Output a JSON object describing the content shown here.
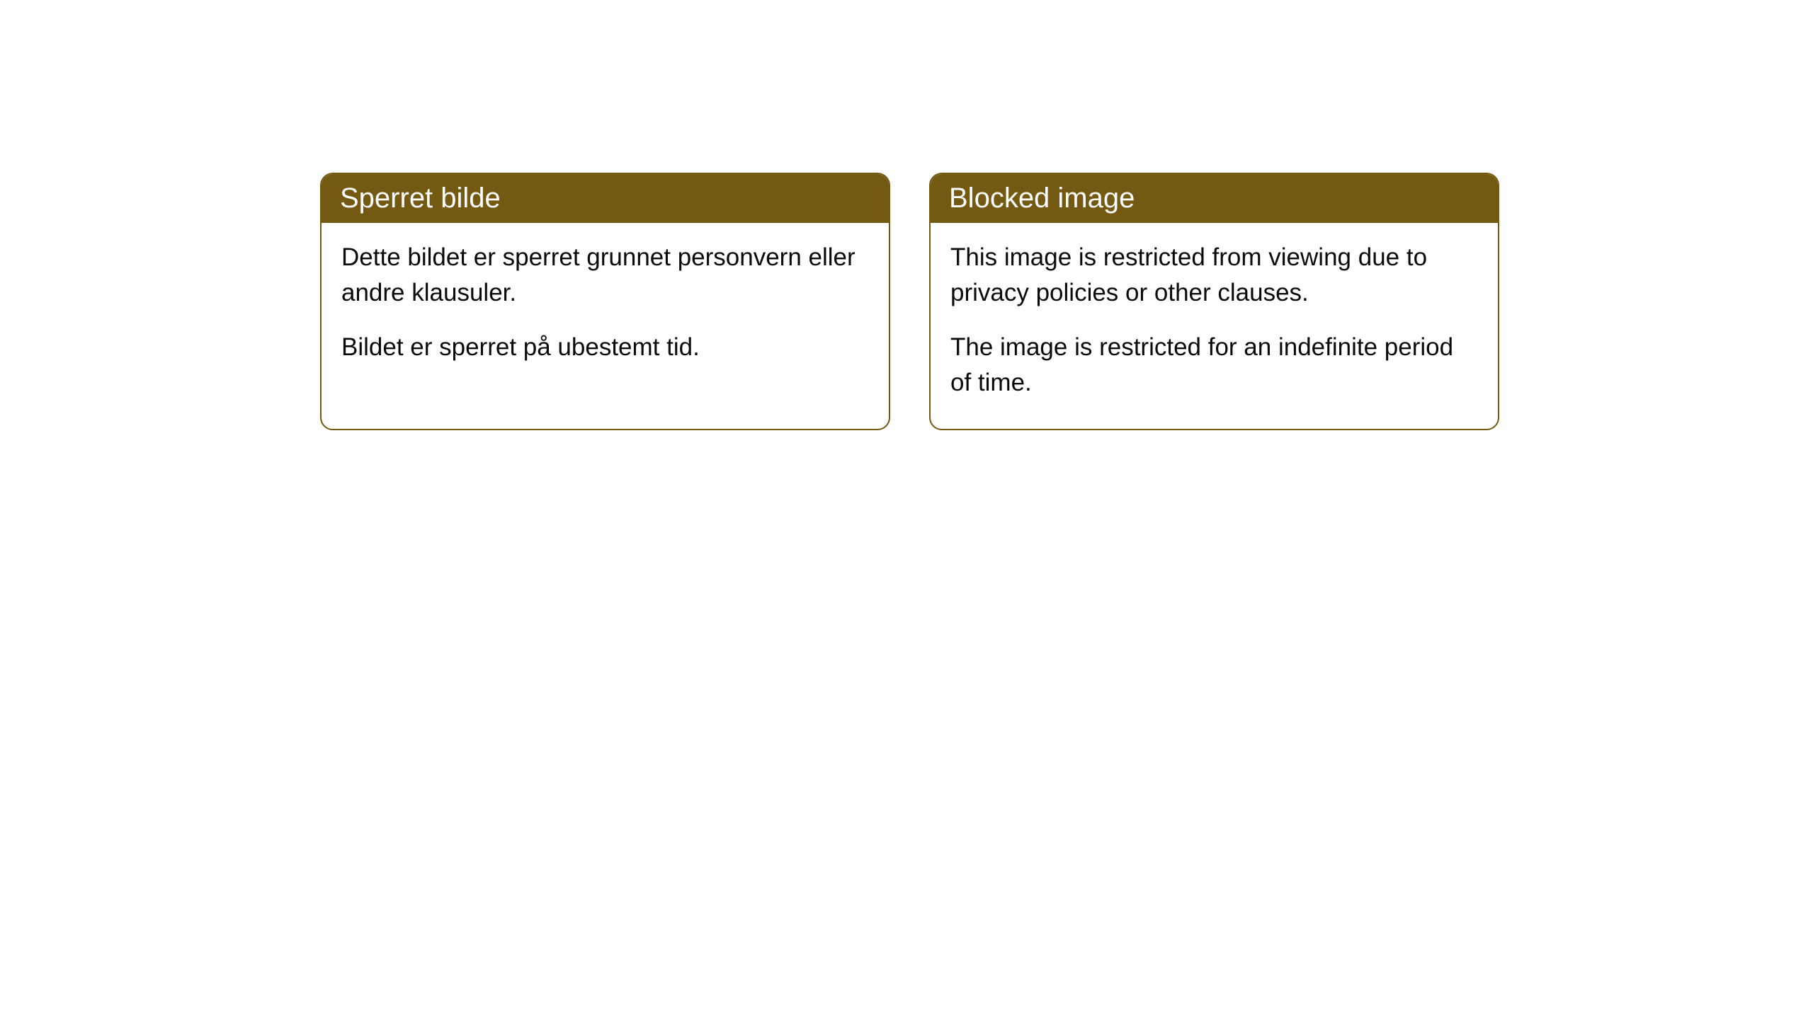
{
  "cards": [
    {
      "header": "Sperret bilde",
      "paragraph1": "Dette bildet er sperret grunnet personvern eller andre klausuler.",
      "paragraph2": "Bildet er sperret på ubestemt tid."
    },
    {
      "header": "Blocked image",
      "paragraph1": "This image is restricted from viewing due to privacy policies or other clauses.",
      "paragraph2": "The image is restricted for an indefinite period of time."
    }
  ],
  "styling": {
    "header_background_color": "#745912",
    "header_text_color": "#ffffff",
    "border_color": "#745912",
    "body_text_color": "#0a0a0a",
    "background_color": "#ffffff",
    "border_radius": 18,
    "header_fontsize": 40,
    "body_fontsize": 35
  }
}
